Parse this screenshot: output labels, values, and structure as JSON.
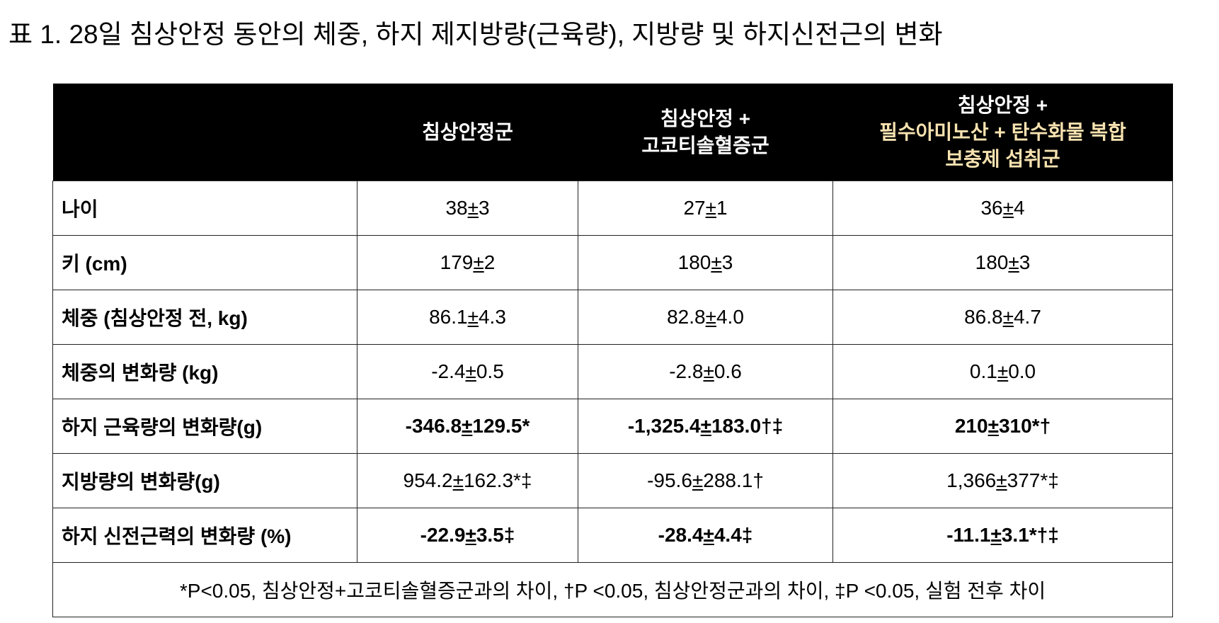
{
  "title": "표 1. 28일 침상안정 동안의 체중, 하지 제지방량(근육량), 지방량 및 하지신전근의 변화",
  "table": {
    "header": [
      [
        "침상안정군"
      ],
      [
        "침상안정 +",
        "고코티솔혈증군"
      ],
      [
        "침상안정 +",
        "필수아미노산 + 탄수화물 복합",
        "보충제 섭취군"
      ]
    ],
    "rows": [
      [
        "나이",
        "38±3",
        "27±1",
        "36±4"
      ],
      [
        "키 (cm)",
        "179±2",
        "180±3",
        "180±3"
      ],
      [
        "체중 (침상안정 전, kg)",
        "86.1±4.3",
        "82.8±4.0",
        "86.8±4.7"
      ],
      [
        "체중의 변화량 (kg)",
        "-2.4±0.5",
        "-2.8±0.6",
        "0.1±0.0"
      ],
      [
        "하지 근육량의 변화량(g)",
        "-346.8±129.5*",
        "-1,325.4±183.0†‡",
        "210±310*†"
      ],
      [
        "지방량의 변화량(g)",
        "954.2±162.3*‡",
        "-95.6±288.1†",
        "1,366±377*‡"
      ],
      [
        "하지 신전근력의 변화량 (%)",
        "-22.9±3.5‡",
        "-28.4±4.4‡",
        "-11.1±3.1*†‡"
      ]
    ],
    "footnote": "*P<0.05, 침상안정+고코티솔혈증군과의 차이, †P <0.05, 침상안정군과의 차이, ‡P <0.05, 실험 전후 차이"
  }
}
